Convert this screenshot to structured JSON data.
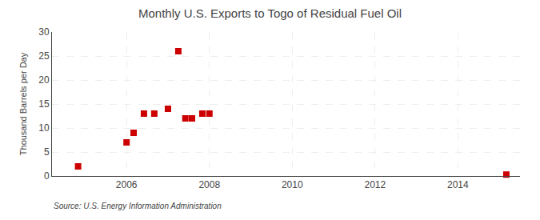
{
  "chart_data": {
    "type": "scatter",
    "title": "Monthly U.S. Exports to Togo of Residual Fuel Oil",
    "ylabel": "Thousand Barrels per Day",
    "annotations": [
      "Source: U.S. Energy Information Administration"
    ],
    "x": [
      2004.83,
      2006.0,
      2006.17,
      2006.42,
      2006.67,
      2007.0,
      2007.25,
      2007.42,
      2007.58,
      2007.83,
      2008.0,
      2015.17
    ],
    "values": [
      2,
      7,
      9,
      13,
      13,
      14,
      26,
      12,
      12,
      13,
      13,
      0.3
    ],
    "color": "#cc0000",
    "marker": "square",
    "xlim": [
      2004.2,
      2015.5
    ],
    "ylim": [
      0,
      30
    ],
    "xticks": [
      2006,
      2008,
      2010,
      2012,
      2014
    ],
    "yticks": [
      0,
      5,
      10,
      15,
      20,
      25,
      30
    ],
    "grid": true
  }
}
